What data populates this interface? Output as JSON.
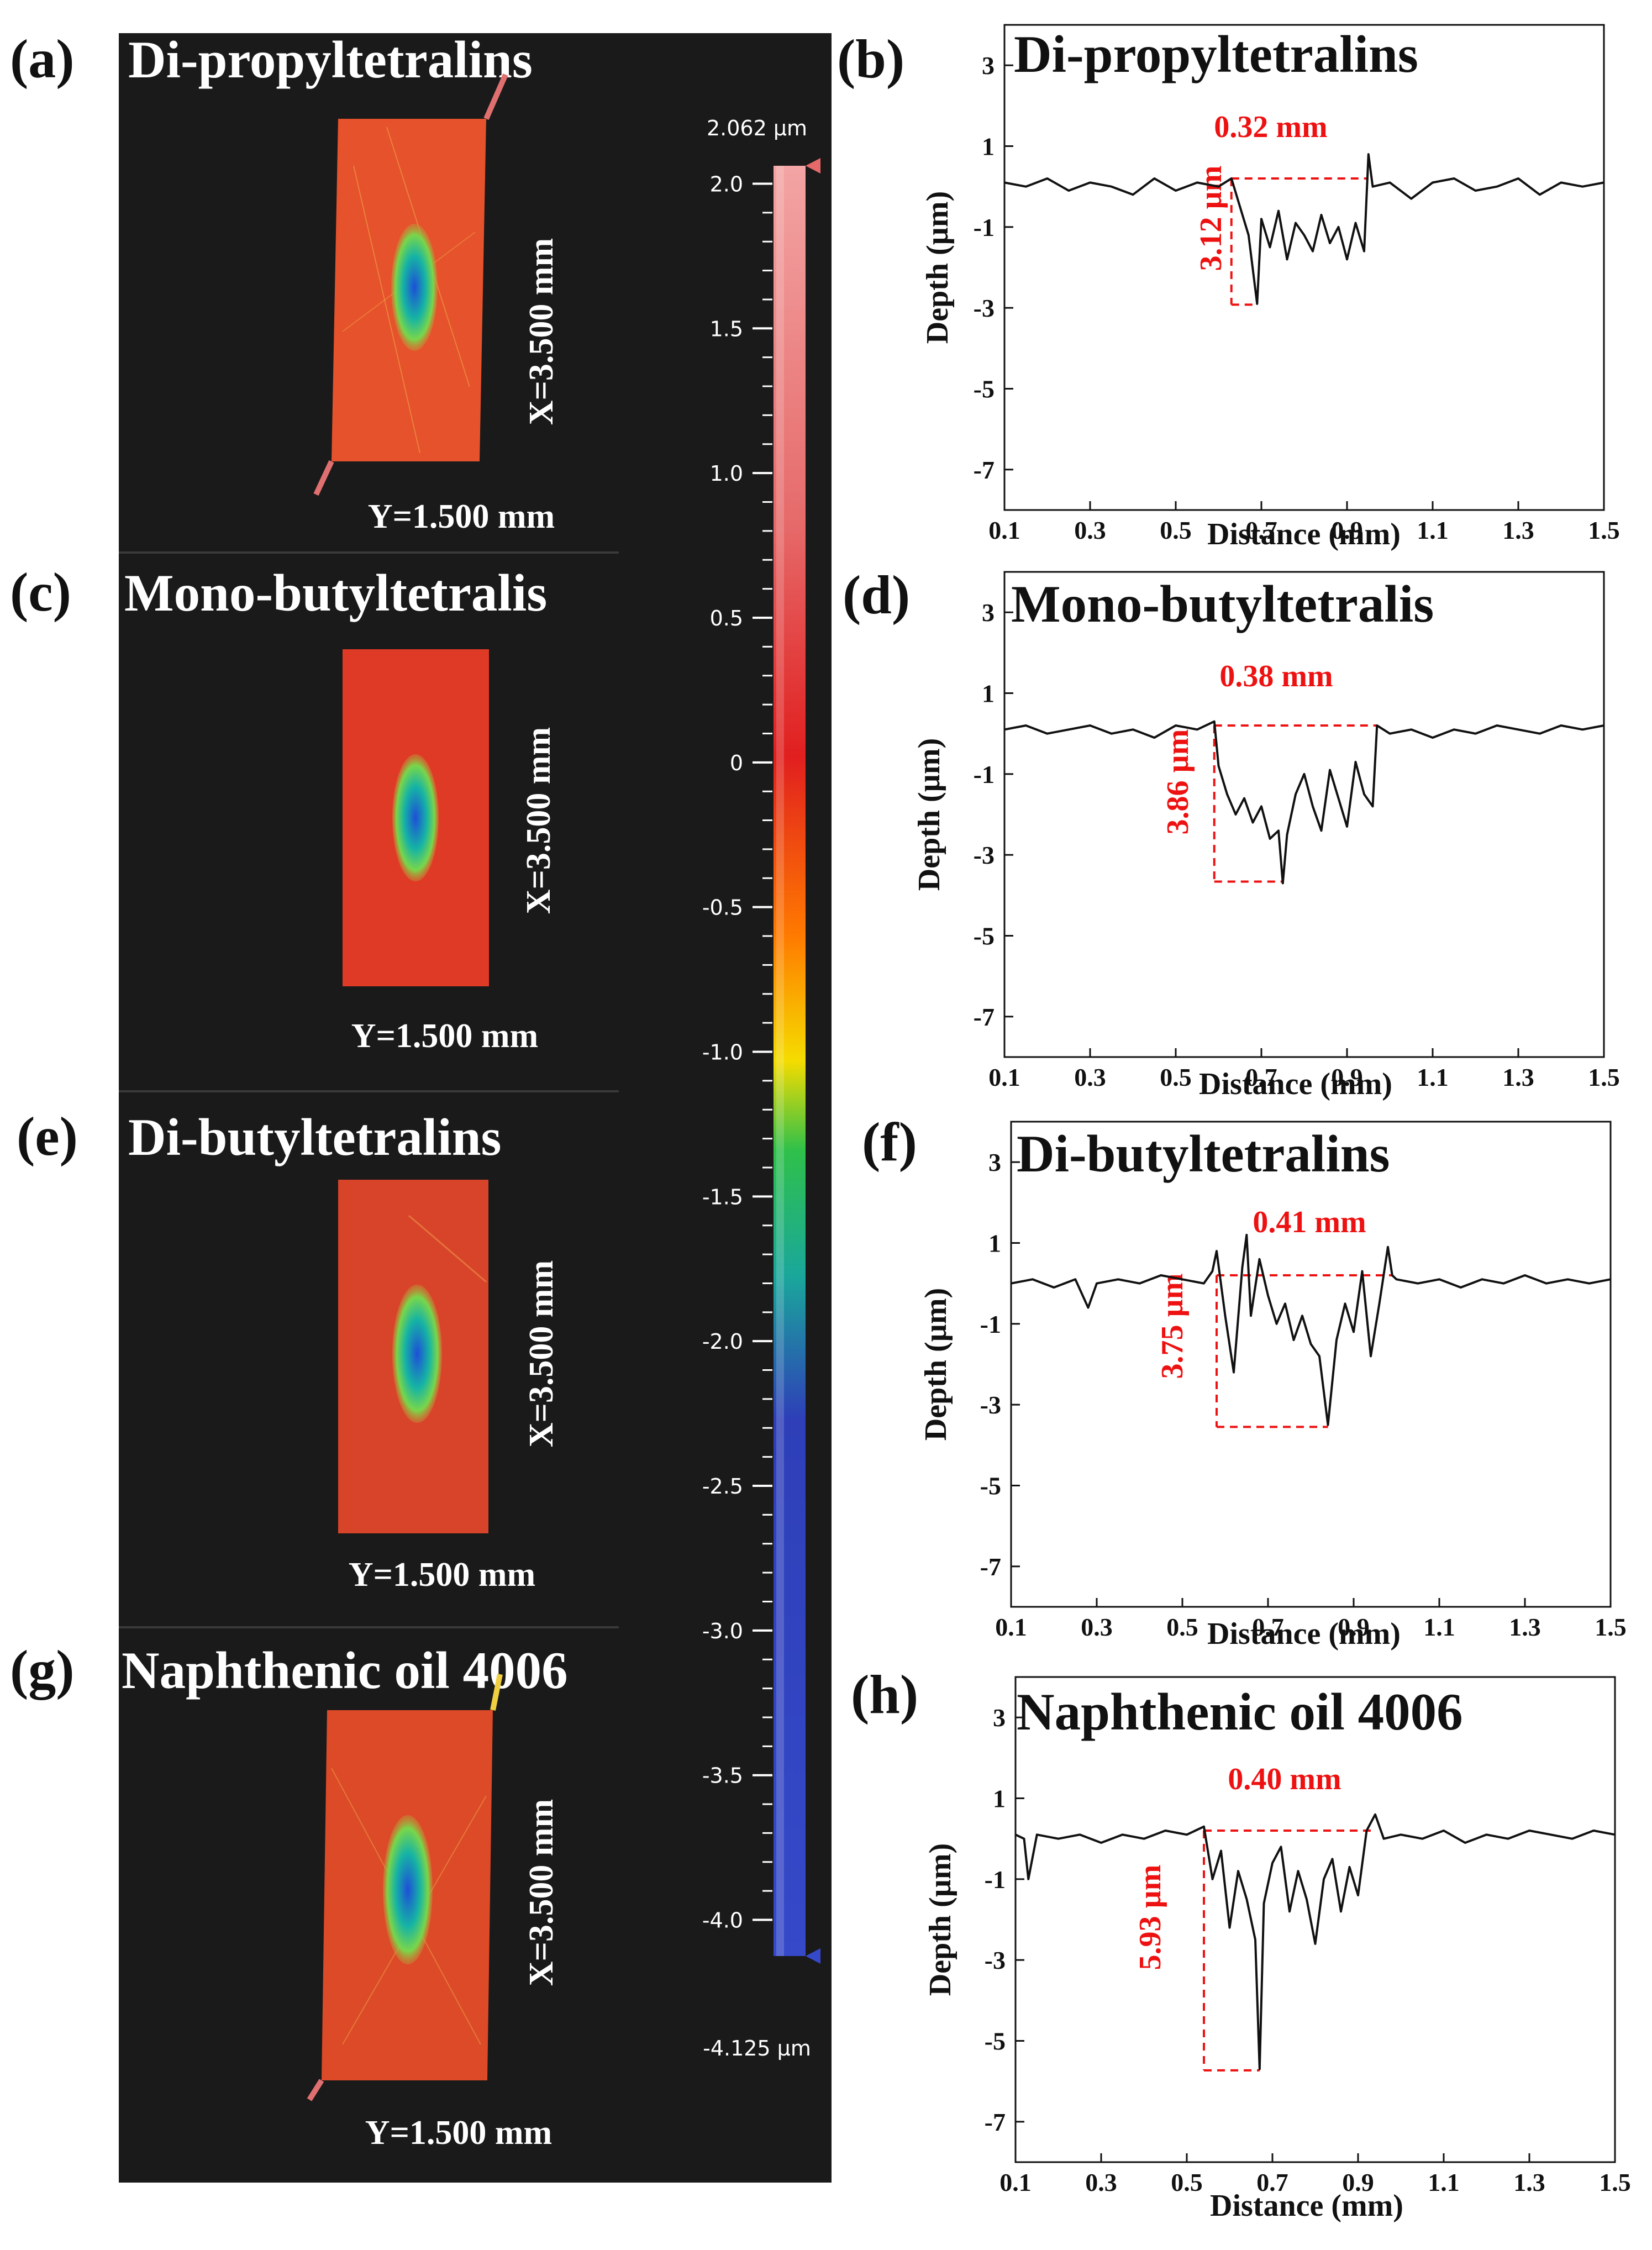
{
  "colorbar": {
    "max_label": "2.062 µm",
    "min_label": "-4.125 µm",
    "max_value": 2.062,
    "min_value": -4.125,
    "ticks": [
      "2.0",
      "1.5",
      "1.0",
      "0.5",
      "0",
      "-0.5",
      "-1.0",
      "-1.5",
      "-2.0",
      "-2.5",
      "-3.0",
      "-3.5",
      "-4.0"
    ]
  },
  "maps": [
    {
      "label": "(a)",
      "title": "Di-propyltetralins",
      "x_dim": "X=3.500 mm",
      "y_dim": "Y=1.500 mm"
    },
    {
      "label": "(c)",
      "title": "Mono-butyltetralis",
      "x_dim": "X=3.500 mm",
      "y_dim": "Y=1.500 mm"
    },
    {
      "label": "(e)",
      "title": "Di-butyltetralins",
      "x_dim": "X=3.500 mm",
      "y_dim": "Y=1.500 mm"
    },
    {
      "label": "(g)",
      "title": "Naphthenic oil 4006",
      "x_dim": "X=3.500 mm",
      "y_dim": "Y=1.500 mm"
    }
  ],
  "chart_data": [
    {
      "type": "line",
      "label": "(b)",
      "title": "Di-propyltetralins",
      "xlabel": "Distance (mm)",
      "ylabel": "Depth (µm)",
      "xlim": [
        0.1,
        1.5
      ],
      "ylim": [
        -8,
        4
      ],
      "xticks": [
        "0.1",
        "0.3",
        "0.5",
        "0.7",
        "0.9",
        "1.1",
        "1.3",
        "1.5"
      ],
      "yticks": [
        "3",
        "1",
        "-1",
        "-3",
        "-5",
        "-7"
      ],
      "width_label": "0.32 mm",
      "depth_label": "3.12 µm",
      "wear_start": 0.63,
      "wear_end": 0.95,
      "baseline": 0.2,
      "min_depth": -2.92,
      "x": [
        0.1,
        0.15,
        0.2,
        0.25,
        0.3,
        0.35,
        0.4,
        0.45,
        0.5,
        0.55,
        0.6,
        0.63,
        0.65,
        0.67,
        0.69,
        0.7,
        0.72,
        0.74,
        0.76,
        0.78,
        0.8,
        0.82,
        0.84,
        0.86,
        0.88,
        0.9,
        0.92,
        0.94,
        0.95,
        0.96,
        1.0,
        1.05,
        1.1,
        1.15,
        1.2,
        1.25,
        1.3,
        1.35,
        1.4,
        1.45,
        1.5
      ],
      "y": [
        0.1,
        0.0,
        0.2,
        -0.1,
        0.1,
        0.0,
        -0.2,
        0.2,
        -0.1,
        0.1,
        0.0,
        0.2,
        -0.5,
        -1.2,
        -2.9,
        -0.8,
        -1.5,
        -0.6,
        -1.8,
        -0.9,
        -1.2,
        -1.6,
        -0.7,
        -1.4,
        -1.0,
        -1.8,
        -0.9,
        -1.6,
        0.8,
        0.0,
        0.1,
        -0.3,
        0.1,
        0.2,
        -0.1,
        0.0,
        0.2,
        -0.2,
        0.1,
        0.0,
        0.1
      ]
    },
    {
      "type": "line",
      "label": "(d)",
      "title": "Mono-butyltetralis",
      "xlabel": "Distance (mm)",
      "ylabel": "Depth (µm)",
      "xlim": [
        0.1,
        1.5
      ],
      "ylim": [
        -8,
        4
      ],
      "xticks": [
        "0.1",
        "0.3",
        "0.5",
        "0.7",
        "0.9",
        "1.1",
        "1.3",
        "1.5"
      ],
      "yticks": [
        "3",
        "1",
        "-1",
        "-3",
        "-5",
        "-7"
      ],
      "width_label": "0.38 mm",
      "depth_label": "3.86 µm",
      "wear_start": 0.59,
      "wear_end": 0.97,
      "baseline": 0.2,
      "min_depth": -3.66,
      "x": [
        0.1,
        0.15,
        0.2,
        0.25,
        0.3,
        0.35,
        0.4,
        0.45,
        0.5,
        0.55,
        0.59,
        0.6,
        0.62,
        0.64,
        0.66,
        0.68,
        0.7,
        0.72,
        0.74,
        0.75,
        0.76,
        0.78,
        0.8,
        0.82,
        0.84,
        0.86,
        0.88,
        0.9,
        0.92,
        0.94,
        0.96,
        0.97,
        1.0,
        1.05,
        1.1,
        1.15,
        1.2,
        1.25,
        1.3,
        1.35,
        1.4,
        1.45,
        1.5
      ],
      "y": [
        0.1,
        0.2,
        0.0,
        0.1,
        0.2,
        0.0,
        0.1,
        -0.1,
        0.2,
        0.1,
        0.3,
        -0.8,
        -1.5,
        -2.0,
        -1.6,
        -2.2,
        -1.8,
        -2.6,
        -2.4,
        -3.7,
        -2.5,
        -1.5,
        -1.0,
        -1.8,
        -2.4,
        -0.9,
        -1.6,
        -2.3,
        -0.7,
        -1.5,
        -1.8,
        0.2,
        0.0,
        0.1,
        -0.1,
        0.1,
        0.0,
        0.2,
        0.1,
        0.0,
        0.2,
        0.1,
        0.2
      ]
    },
    {
      "type": "line",
      "label": "(f)",
      "title": "Di-butyltetralins",
      "xlabel": "Distance (mm)",
      "ylabel": "Depth (µm)",
      "xlim": [
        0.1,
        1.5
      ],
      "ylim": [
        -8,
        4
      ],
      "xticks": [
        "0.1",
        "0.3",
        "0.5",
        "0.7",
        "0.9",
        "1.1",
        "1.3",
        "1.5"
      ],
      "yticks": [
        "3",
        "1",
        "-1",
        "-3",
        "-5",
        "-7"
      ],
      "width_label": "0.41 mm",
      "depth_label": "3.75 µm",
      "wear_start": 0.58,
      "wear_end": 0.99,
      "baseline": 0.2,
      "min_depth": -3.55,
      "x": [
        0.1,
        0.15,
        0.2,
        0.25,
        0.28,
        0.3,
        0.35,
        0.4,
        0.45,
        0.5,
        0.55,
        0.57,
        0.58,
        0.6,
        0.62,
        0.64,
        0.65,
        0.66,
        0.68,
        0.7,
        0.72,
        0.74,
        0.76,
        0.78,
        0.8,
        0.82,
        0.84,
        0.86,
        0.88,
        0.9,
        0.92,
        0.94,
        0.96,
        0.98,
        0.99,
        1.0,
        1.05,
        1.1,
        1.15,
        1.2,
        1.25,
        1.3,
        1.35,
        1.4,
        1.45,
        1.5
      ],
      "y": [
        0.0,
        0.1,
        -0.1,
        0.1,
        -0.6,
        0.0,
        0.1,
        0.0,
        0.2,
        0.1,
        0.0,
        0.3,
        0.8,
        -0.8,
        -2.2,
        0.4,
        1.2,
        -0.8,
        0.6,
        -0.3,
        -1.0,
        -0.5,
        -1.4,
        -0.8,
        -1.5,
        -1.8,
        -3.5,
        -1.4,
        -0.5,
        -1.2,
        0.3,
        -1.8,
        -0.5,
        0.9,
        0.2,
        0.1,
        0.0,
        0.1,
        -0.1,
        0.1,
        0.0,
        0.2,
        0.0,
        0.1,
        0.0,
        0.1
      ]
    },
    {
      "type": "line",
      "label": "(h)",
      "title": "Naphthenic oil 4006",
      "xlabel": "Distance (mm)",
      "ylabel": "Depth (µm)",
      "xlim": [
        0.1,
        1.5
      ],
      "ylim": [
        -8,
        4
      ],
      "xticks": [
        "0.1",
        "0.3",
        "0.5",
        "0.7",
        "0.9",
        "1.1",
        "1.3",
        "1.5"
      ],
      "yticks": [
        "3",
        "1",
        "-1",
        "-3",
        "-5",
        "-7"
      ],
      "width_label": "0.40 mm",
      "depth_label": "5.93 µm",
      "wear_start": 0.54,
      "wear_end": 0.94,
      "baseline": 0.2,
      "min_depth": -5.73,
      "x": [
        0.1,
        0.12,
        0.13,
        0.15,
        0.2,
        0.25,
        0.3,
        0.35,
        0.4,
        0.45,
        0.5,
        0.54,
        0.56,
        0.58,
        0.6,
        0.62,
        0.64,
        0.66,
        0.67,
        0.68,
        0.7,
        0.72,
        0.74,
        0.76,
        0.78,
        0.8,
        0.82,
        0.84,
        0.86,
        0.88,
        0.9,
        0.92,
        0.94,
        0.96,
        1.0,
        1.05,
        1.1,
        1.15,
        1.2,
        1.25,
        1.3,
        1.35,
        1.4,
        1.45,
        1.5
      ],
      "y": [
        0.1,
        0.0,
        -1.0,
        0.1,
        0.0,
        0.1,
        -0.1,
        0.1,
        0.0,
        0.2,
        0.1,
        0.3,
        -1.0,
        -0.3,
        -2.2,
        -0.8,
        -1.5,
        -2.5,
        -5.7,
        -1.6,
        -0.6,
        -0.2,
        -1.8,
        -0.8,
        -1.5,
        -2.6,
        -1.0,
        -0.5,
        -1.8,
        -0.7,
        -1.4,
        0.2,
        0.6,
        0.0,
        0.1,
        0.0,
        0.2,
        -0.1,
        0.1,
        0.0,
        0.2,
        0.1,
        0.0,
        0.2,
        0.1
      ]
    }
  ]
}
